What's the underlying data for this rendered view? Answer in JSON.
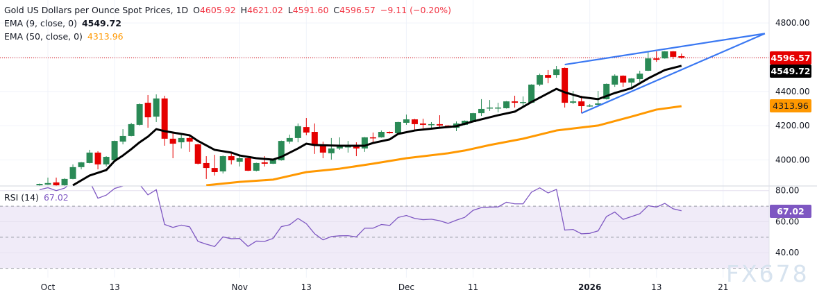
{
  "header": {
    "title": "Gold US Dollars per Ounce Spot Prices, 1D",
    "open_label": "O",
    "open": "4605.92",
    "high_label": "H",
    "high": "4621.02",
    "low_label": "L",
    "low": "4591.60",
    "close_label": "C",
    "close": "4596.57",
    "change": "−9.11 (−0.20%)"
  },
  "indicators": {
    "ema9_label": "EMA (9, close, 0)",
    "ema9_value": "4549.72",
    "ema50_label": "EMA (50, close, 0)",
    "ema50_value": "4313.96",
    "rsi_label": "RSI (14)",
    "rsi_value": "67.02"
  },
  "price_tags": {
    "last": "4596.57",
    "ema9": "4549.72",
    "ema50": "4313.96",
    "rsi": "67.02"
  },
  "watermark": "FX678",
  "colors": {
    "up": "#2a8a56",
    "down": "#e50000",
    "ema9": "#000000",
    "ema50": "#ff9800",
    "trendline": "#3a78f2",
    "rsi": "#7e57c2",
    "rsi_band": "#f0ebf8"
  },
  "chart_data": {
    "type": "candlestick",
    "price_axis": {
      "ticks": [
        "4800.00",
        "4400.00",
        "4200.00",
        "4000.00"
      ],
      "tick_values": [
        4800,
        4400,
        4200,
        4000
      ],
      "grid_values": [
        4000,
        4200,
        4400,
        4600,
        4800
      ],
      "range": [
        3848,
        4934
      ]
    },
    "rsi_axis": {
      "ticks": [
        "80.00",
        "60.00",
        "40.00"
      ],
      "tick_values": [
        80,
        60,
        40
      ],
      "bands": [
        70,
        50,
        30
      ],
      "range": [
        24,
        83
      ]
    },
    "x_ticks": [
      {
        "label": "Oct",
        "date": "2025-10-01"
      },
      {
        "label": "13",
        "date": "2025-10-13"
      },
      {
        "label": "Nov",
        "date": "2025-11-03"
      },
      {
        "label": "13",
        "date": "2025-11-13"
      },
      {
        "label": "Dec",
        "date": "2025-12-01"
      },
      {
        "label": "11",
        "date": "2025-12-11"
      },
      {
        "label": "2026",
        "date": "2026-01-01",
        "bold": true
      },
      {
        "label": "13",
        "date": "2026-01-13"
      },
      {
        "label": "21",
        "date": "2026-01-21"
      }
    ],
    "candles_fields": [
      "date",
      "open",
      "high",
      "low",
      "close"
    ],
    "candles": [
      [
        "2025-09-30",
        3852,
        3862,
        3850,
        3860
      ],
      [
        "2025-10-01",
        3856,
        3897,
        3854,
        3865
      ],
      [
        "2025-10-02",
        3869,
        3897,
        3850,
        3852
      ],
      [
        "2025-10-03",
        3852,
        3893,
        3850,
        3889
      ],
      [
        "2025-10-06",
        3889,
        3974,
        3887,
        3958
      ],
      [
        "2025-10-07",
        3958,
        3988,
        3945,
        3986
      ],
      [
        "2025-10-08",
        3982,
        4059,
        3980,
        4043
      ],
      [
        "2025-10-09",
        4043,
        4051,
        3945,
        3974
      ],
      [
        "2025-10-10",
        3974,
        4022,
        3962,
        4018
      ],
      [
        "2025-10-13",
        3998,
        4113,
        3996,
        4111
      ],
      [
        "2025-10-14",
        4107,
        4180,
        4091,
        4140
      ],
      [
        "2025-10-15",
        4140,
        4217,
        4138,
        4209
      ],
      [
        "2025-10-16",
        4205,
        4330,
        4201,
        4326
      ],
      [
        "2025-10-17",
        4334,
        4379,
        4188,
        4249
      ],
      [
        "2025-10-20",
        4253,
        4383,
        4221,
        4359
      ],
      [
        "2025-10-21",
        4359,
        4375,
        4083,
        4124
      ],
      [
        "2025-10-22",
        4124,
        4164,
        4010,
        4095
      ],
      [
        "2025-10-23",
        4103,
        4152,
        4067,
        4128
      ],
      [
        "2025-10-24",
        4128,
        4148,
        4047,
        4107
      ],
      [
        "2025-10-27",
        4091,
        4095,
        3974,
        3978
      ],
      [
        "2025-10-28",
        3982,
        4022,
        3889,
        3953
      ],
      [
        "2025-10-29",
        3953,
        4030,
        3909,
        3929
      ],
      [
        "2025-10-30",
        3933,
        4026,
        3921,
        4022
      ],
      [
        "2025-10-31",
        4022,
        4047,
        3974,
        3998
      ],
      [
        "2025-11-03",
        3990,
        4026,
        3962,
        4010
      ],
      [
        "2025-11-04",
        4010,
        4014,
        3935,
        3937
      ],
      [
        "2025-11-05",
        3937,
        3984,
        3933,
        3982
      ],
      [
        "2025-11-06",
        3986,
        4022,
        3962,
        3978
      ],
      [
        "2025-11-07",
        3978,
        4008,
        3976,
        4006
      ],
      [
        "2025-11-10",
        3998,
        4113,
        3996,
        4111
      ],
      [
        "2025-11-11",
        4107,
        4148,
        4095,
        4128
      ],
      [
        "2025-11-12",
        4128,
        4213,
        4103,
        4197
      ],
      [
        "2025-11-13",
        4192,
        4245,
        4144,
        4160
      ],
      [
        "2025-11-14",
        4164,
        4213,
        4035,
        4087
      ],
      [
        "2025-11-17",
        4087,
        4107,
        4010,
        4043
      ],
      [
        "2025-11-18",
        4039,
        4128,
        4002,
        4067
      ],
      [
        "2025-11-19",
        4067,
        4132,
        4059,
        4079
      ],
      [
        "2025-11-20",
        4075,
        4111,
        4043,
        4079
      ],
      [
        "2025-11-21",
        4079,
        4103,
        4022,
        4067
      ],
      [
        "2025-11-24",
        4067,
        4134,
        4047,
        4132
      ],
      [
        "2025-11-25",
        4132,
        4160,
        4095,
        4128
      ],
      [
        "2025-11-26",
        4132,
        4172,
        4130,
        4164
      ],
      [
        "2025-11-27",
        4164,
        4166,
        4154,
        4156
      ],
      [
        "2025-11-28",
        4156,
        4223,
        4154,
        4221
      ],
      [
        "2025-12-01",
        4217,
        4265,
        4205,
        4237
      ],
      [
        "2025-12-02",
        4237,
        4240,
        4168,
        4209
      ],
      [
        "2025-12-03",
        4213,
        4241,
        4184,
        4205
      ],
      [
        "2025-12-04",
        4205,
        4221,
        4184,
        4209
      ],
      [
        "2025-12-05",
        4209,
        4261,
        4188,
        4201
      ],
      [
        "2025-12-08",
        4201,
        4203,
        4186,
        4188
      ],
      [
        "2025-12-09",
        4188,
        4225,
        4168,
        4213
      ],
      [
        "2025-12-10",
        4205,
        4231,
        4203,
        4229
      ],
      [
        "2025-12-11",
        4221,
        4275,
        4219,
        4273
      ],
      [
        "2025-12-12",
        4273,
        4355,
        4257,
        4298
      ],
      [
        "2025-12-15",
        4302,
        4350,
        4286,
        4306
      ],
      [
        "2025-12-16",
        4302,
        4334,
        4278,
        4306
      ],
      [
        "2025-12-17",
        4302,
        4344,
        4300,
        4342
      ],
      [
        "2025-12-18",
        4342,
        4375,
        4306,
        4334
      ],
      [
        "2025-12-19",
        4334,
        4371,
        4306,
        4338
      ],
      [
        "2025-12-22",
        4334,
        4442,
        4332,
        4440
      ],
      [
        "2025-12-23",
        4440,
        4504,
        4431,
        4496
      ],
      [
        "2025-12-24",
        4496,
        4525,
        4448,
        4480
      ],
      [
        "2025-12-26",
        4496,
        4549,
        4480,
        4529
      ],
      [
        "2025-12-29",
        4537,
        4540,
        4306,
        4334
      ],
      [
        "2025-12-30",
        4334,
        4403,
        4326,
        4342
      ],
      [
        "2025-12-31",
        4342,
        4375,
        4273,
        4314
      ],
      [
        "2026-01-01",
        4314,
        4326,
        4310,
        4318
      ],
      [
        "2026-01-02",
        4322,
        4403,
        4314,
        4330
      ],
      [
        "2026-01-05",
        4355,
        4446,
        4353,
        4444
      ],
      [
        "2026-01-06",
        4440,
        4500,
        4427,
        4492
      ],
      [
        "2026-01-07",
        4492,
        4494,
        4427,
        4452
      ],
      [
        "2026-01-08",
        4452,
        4478,
        4415,
        4476
      ],
      [
        "2026-01-09",
        4472,
        4521,
        4456,
        4504
      ],
      [
        "2026-01-12",
        4521,
        4630,
        4519,
        4593
      ],
      [
        "2026-01-13",
        4593,
        4634,
        4573,
        4585
      ],
      [
        "2026-01-14",
        4593,
        4636,
        4591,
        4634
      ],
      [
        "2026-01-15",
        4634,
        4636,
        4589,
        4602
      ],
      [
        "2026-01-16",
        4605.92,
        4621.02,
        4591.6,
        4596.57
      ]
    ],
    "ema9": [
      [
        "2025-10-06",
        3852
      ],
      [
        "2025-10-08",
        3909
      ],
      [
        "2025-10-10",
        3941
      ],
      [
        "2025-10-13",
        3994
      ],
      [
        "2025-10-14",
        4026
      ],
      [
        "2025-10-15",
        4063
      ],
      [
        "2025-10-16",
        4103
      ],
      [
        "2025-10-17",
        4136
      ],
      [
        "2025-10-20",
        4180
      ],
      [
        "2025-10-21",
        4168
      ],
      [
        "2025-10-22",
        4160
      ],
      [
        "2025-10-24",
        4144
      ],
      [
        "2025-10-27",
        4111
      ],
      [
        "2025-10-29",
        4059
      ],
      [
        "2025-10-31",
        4043
      ],
      [
        "2025-11-03",
        4026
      ],
      [
        "2025-11-05",
        4010
      ],
      [
        "2025-11-07",
        4002
      ],
      [
        "2025-11-10",
        4018
      ],
      [
        "2025-11-12",
        4067
      ],
      [
        "2025-11-13",
        4095
      ],
      [
        "2025-11-14",
        4087
      ],
      [
        "2025-11-19",
        4083
      ],
      [
        "2025-11-24",
        4083
      ],
      [
        "2025-11-25",
        4099
      ],
      [
        "2025-11-27",
        4120
      ],
      [
        "2025-11-28",
        4152
      ],
      [
        "2025-12-02",
        4172
      ],
      [
        "2025-12-05",
        4188
      ],
      [
        "2025-12-09",
        4197
      ],
      [
        "2025-12-11",
        4225
      ],
      [
        "2025-12-16",
        4261
      ],
      [
        "2025-12-18",
        4282
      ],
      [
        "2025-12-22",
        4338
      ],
      [
        "2025-12-26",
        4415
      ],
      [
        "2025-12-29",
        4395
      ],
      [
        "2025-12-31",
        4367
      ],
      [
        "2026-01-02",
        4355
      ],
      [
        "2026-01-06",
        4391
      ],
      [
        "2026-01-08",
        4419
      ],
      [
        "2026-01-12",
        4476
      ],
      [
        "2026-01-14",
        4525
      ],
      [
        "2026-01-16",
        4549.72
      ]
    ],
    "ema50": [
      [
        "2025-10-28",
        3852
      ],
      [
        "2025-11-03",
        3872
      ],
      [
        "2025-11-07",
        3885
      ],
      [
        "2025-11-13",
        3929
      ],
      [
        "2025-11-19",
        3949
      ],
      [
        "2025-11-25",
        3978
      ],
      [
        "2025-12-01",
        4010
      ],
      [
        "2025-12-08",
        4039
      ],
      [
        "2025-12-10",
        4055
      ],
      [
        "2025-12-15",
        4087
      ],
      [
        "2025-12-19",
        4124
      ],
      [
        "2025-12-26",
        4172
      ],
      [
        "2026-01-02",
        4201
      ],
      [
        "2026-01-08",
        4253
      ],
      [
        "2026-01-13",
        4294
      ],
      [
        "2026-01-16",
        4313.96
      ]
    ],
    "trendlines": [
      {
        "from": [
          "2025-12-29",
          4557
        ],
        "to": [
          "2026-01-26",
          4738
        ]
      },
      {
        "from": [
          "2025-12-31",
          4273
        ],
        "to": [
          "2026-01-26",
          4738
        ]
      }
    ],
    "rsi": [
      80.6,
      81.9,
      80,
      81.6,
      86,
      85,
      86,
      75.1,
      77.1,
      81.4,
      83,
      86,
      84,
      77.3,
      80.6,
      58.2,
      56.3,
      57.8,
      56.7,
      47.3,
      45.5,
      44,
      50.2,
      49,
      49.2,
      44.1,
      47.5,
      47.3,
      49.2,
      56.8,
      58,
      62.1,
      58.7,
      52.2,
      48.3,
      50.4,
      50.9,
      51,
      50.2,
      55.8,
      55.8,
      58.2,
      57.6,
      62.7,
      64,
      62.1,
      61.3,
      61.6,
      60.6,
      58.9,
      61,
      62.8,
      67.3,
      69.1,
      69.4,
      69.5,
      72.5,
      71.5,
      71.5,
      79,
      81.8,
      78.5,
      80.8,
      54.6,
      55,
      52.2,
      52.5,
      54.1,
      63.3,
      66.2,
      61.5,
      63.3,
      65.1,
      70.3,
      69.4,
      71.8,
      68.3,
      67.02
    ]
  }
}
